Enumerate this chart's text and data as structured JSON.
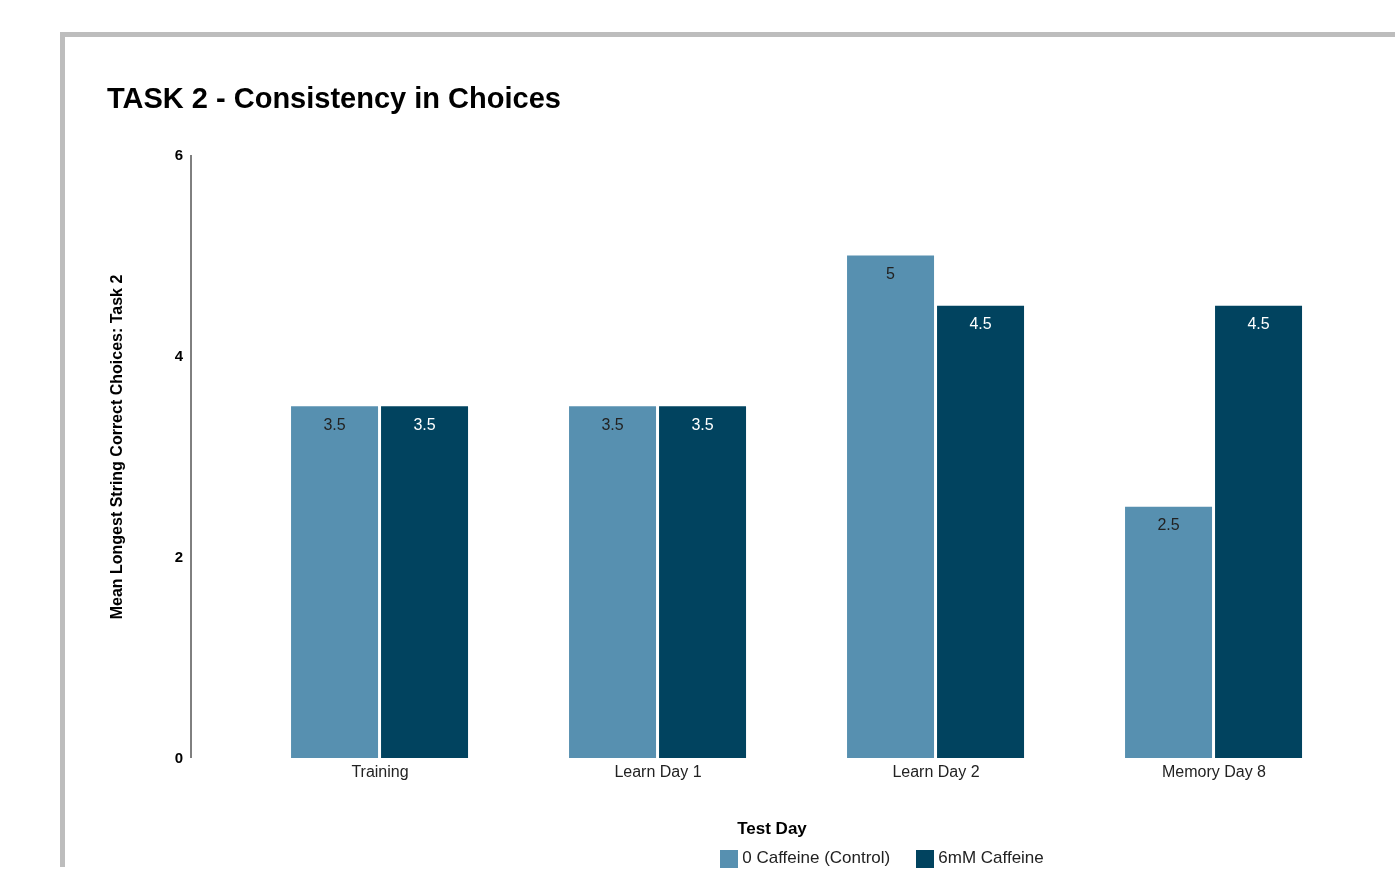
{
  "chart_data": {
    "type": "bar",
    "title": "TASK 2 - Consistency in Choices",
    "xlabel": "Test Day",
    "ylabel": "Mean Longest String Correct Choices: Task 2",
    "categories": [
      "Training",
      "Learn Day 1",
      "Learn Day 2",
      "Memory Day 8"
    ],
    "series": [
      {
        "name": "0 Caffeine (Control)",
        "color": "#5790b0",
        "values": [
          3.5,
          3.5,
          5,
          2.5
        ]
      },
      {
        "name": "6mM Caffeine",
        "color": "#01435f",
        "values": [
          3.5,
          3.5,
          4.5,
          4.5
        ]
      }
    ],
    "ylim": [
      0,
      6
    ],
    "yticks": [
      0,
      2,
      4,
      6
    ],
    "grid": false,
    "legend": "bottom",
    "data_labels": true
  }
}
